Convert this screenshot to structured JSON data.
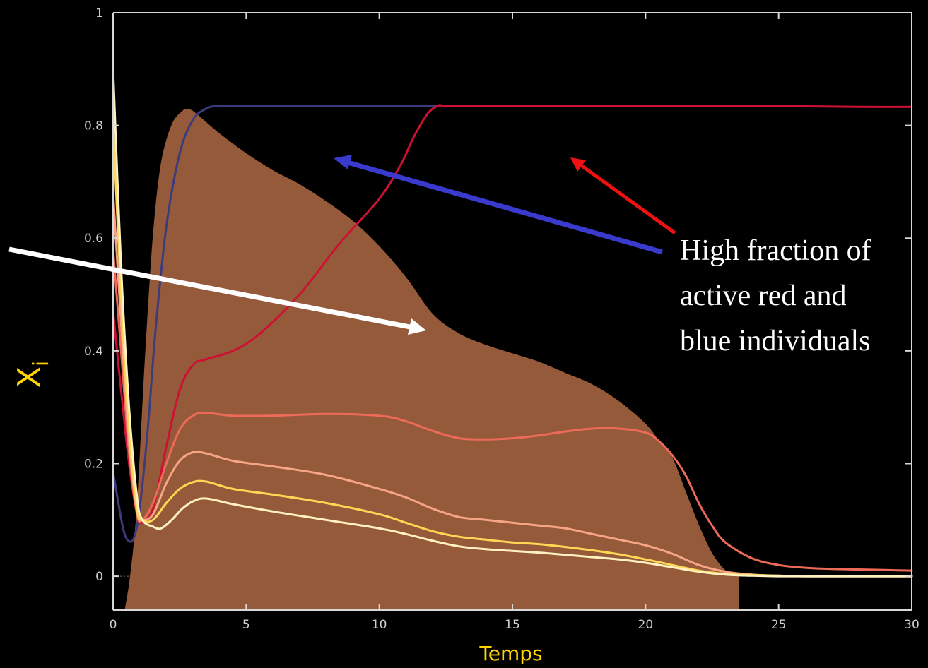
{
  "chart_data": {
    "type": "line",
    "title": "",
    "xlabel": "Temps",
    "ylabel_main": "X",
    "ylabel_sub": "i",
    "xlim": [
      0,
      30
    ],
    "ylim": [
      -0.06,
      1.0
    ],
    "x_ticks": [
      0,
      5,
      10,
      15,
      20,
      25,
      30
    ],
    "x_tick_labels": [
      "0",
      "5",
      "10",
      "15",
      "20",
      "25",
      "30"
    ],
    "y_ticks": [
      0,
      0.2,
      0.4,
      0.6,
      0.8,
      1
    ],
    "y_tick_labels": [
      "0",
      "0.2",
      "0.4",
      "0.6",
      "0.8",
      "1"
    ],
    "grid": false,
    "legend": "none",
    "colors": {
      "background": "#000000",
      "axis": "#d8d8d8",
      "xlabel": "#ffd400",
      "ylabel": "#ffd400",
      "area": "#955a3a",
      "zero_line": "#8a6a3a"
    },
    "area": {
      "x": [
        0.45,
        0.65,
        0.9,
        1.2,
        1.5,
        1.8,
        2.2,
        2.6,
        2.8,
        3.0,
        3.5,
        4.0,
        5,
        6,
        7,
        8,
        9,
        10,
        11,
        12,
        13,
        14,
        15,
        16,
        17,
        18,
        19,
        20,
        20.5,
        21,
        21.5,
        22,
        22.5,
        23,
        23.5
      ],
      "y": [
        -0.06,
        0.0,
        0.12,
        0.38,
        0.6,
        0.73,
        0.8,
        0.825,
        0.828,
        0.825,
        0.805,
        0.785,
        0.75,
        0.72,
        0.695,
        0.665,
        0.63,
        0.585,
        0.53,
        0.465,
        0.43,
        0.41,
        0.395,
        0.38,
        0.36,
        0.34,
        0.31,
        0.27,
        0.24,
        0.21,
        0.15,
        0.09,
        0.04,
        0.01,
        0.0
      ]
    },
    "series": [
      {
        "color": "#3c3c7c",
        "width": 3,
        "x": [
          0,
          0.2,
          0.4,
          0.6,
          0.8,
          1.0,
          1.3,
          1.6,
          2.0,
          2.5,
          3.0,
          3.5,
          3.9,
          4.2,
          5,
          8,
          10,
          12.5
        ],
        "y": [
          0.185,
          0.13,
          0.08,
          0.062,
          0.07,
          0.12,
          0.26,
          0.44,
          0.62,
          0.75,
          0.81,
          0.83,
          0.835,
          0.835,
          0.835,
          0.835,
          0.835,
          0.835
        ]
      },
      {
        "color": "#cc1133",
        "width": 3,
        "x": [
          0,
          0.3,
          0.6,
          0.9,
          1.1,
          1.5,
          2.0,
          2.5,
          3.0,
          3.5,
          4.5,
          5.5,
          7.0,
          8.5,
          10,
          10.8,
          11.3,
          11.8,
          12.2,
          12.5,
          14,
          16,
          18,
          20,
          22,
          24,
          26,
          28,
          30
        ],
        "y": [
          0.47,
          0.33,
          0.2,
          0.11,
          0.095,
          0.12,
          0.23,
          0.33,
          0.375,
          0.385,
          0.4,
          0.43,
          0.5,
          0.59,
          0.67,
          0.73,
          0.78,
          0.82,
          0.835,
          0.835,
          0.835,
          0.835,
          0.835,
          0.835,
          0.835,
          0.834,
          0.834,
          0.833,
          0.833
        ]
      },
      {
        "color": "#ee6a58",
        "width": 3,
        "x": [
          0,
          0.3,
          0.6,
          0.9,
          1.1,
          1.5,
          2.0,
          2.5,
          3.0,
          3.5,
          4.5,
          6,
          8,
          10,
          11,
          12,
          13,
          14,
          15,
          16,
          17,
          18,
          19,
          20,
          20.5,
          21,
          21.5,
          22,
          22.5,
          23,
          24,
          25,
          26,
          27,
          28,
          29,
          30
        ],
        "y": [
          0.58,
          0.4,
          0.22,
          0.11,
          0.1,
          0.13,
          0.2,
          0.26,
          0.285,
          0.29,
          0.285,
          0.285,
          0.288,
          0.285,
          0.275,
          0.258,
          0.245,
          0.243,
          0.245,
          0.25,
          0.257,
          0.262,
          0.262,
          0.255,
          0.24,
          0.215,
          0.18,
          0.13,
          0.09,
          0.06,
          0.032,
          0.02,
          0.015,
          0.013,
          0.012,
          0.011,
          0.01
        ]
      },
      {
        "color": "#f7a585",
        "width": 3,
        "x": [
          0,
          0.3,
          0.6,
          0.9,
          1.1,
          1.5,
          2.0,
          2.5,
          3.0,
          3.5,
          4.5,
          6,
          8,
          10,
          11,
          12,
          13,
          14,
          15,
          16,
          17,
          18,
          19,
          20,
          21,
          22,
          23,
          24,
          25,
          26,
          28,
          30
        ],
        "y": [
          0.68,
          0.45,
          0.24,
          0.115,
          0.1,
          0.11,
          0.165,
          0.205,
          0.22,
          0.218,
          0.205,
          0.195,
          0.18,
          0.155,
          0.14,
          0.12,
          0.105,
          0.1,
          0.095,
          0.09,
          0.085,
          0.075,
          0.065,
          0.055,
          0.04,
          0.02,
          0.008,
          0.003,
          0.001,
          0.0,
          0.0,
          0.0
        ]
      },
      {
        "color": "#ffd755",
        "width": 3,
        "x": [
          0,
          0.3,
          0.6,
          0.9,
          1.1,
          1.5,
          2.0,
          2.5,
          3.0,
          3.5,
          4.5,
          6,
          8,
          10,
          11,
          12,
          13,
          14,
          15,
          16,
          17,
          18,
          19,
          20,
          21,
          22,
          23,
          24,
          25,
          26,
          28,
          30
        ],
        "y": [
          0.8,
          0.5,
          0.26,
          0.12,
          0.1,
          0.1,
          0.13,
          0.155,
          0.167,
          0.168,
          0.155,
          0.145,
          0.13,
          0.11,
          0.095,
          0.08,
          0.07,
          0.065,
          0.06,
          0.057,
          0.052,
          0.046,
          0.039,
          0.03,
          0.02,
          0.01,
          0.004,
          0.002,
          0.001,
          0.0,
          0.0,
          0.0
        ]
      },
      {
        "color": "#fff2c0",
        "width": 3,
        "x": [
          0,
          0.3,
          0.6,
          0.9,
          1.1,
          1.5,
          1.8,
          2.2,
          2.6,
          3.0,
          3.5,
          4.5,
          6,
          8,
          10,
          11,
          12,
          13,
          14,
          15,
          16,
          17,
          18,
          19,
          20,
          21,
          22,
          23,
          24,
          25,
          26,
          28,
          30
        ],
        "y": [
          0.9,
          0.55,
          0.3,
          0.14,
          0.1,
          0.088,
          0.085,
          0.1,
          0.12,
          0.133,
          0.138,
          0.128,
          0.115,
          0.1,
          0.085,
          0.075,
          0.063,
          0.053,
          0.048,
          0.045,
          0.042,
          0.038,
          0.034,
          0.03,
          0.024,
          0.016,
          0.008,
          0.003,
          0.001,
          0.0,
          0.0,
          0.0,
          0.0
        ]
      }
    ],
    "annotations": [
      {
        "lines": [
          "High fraction of",
          "active red and",
          "blue individuals"
        ]
      }
    ]
  }
}
